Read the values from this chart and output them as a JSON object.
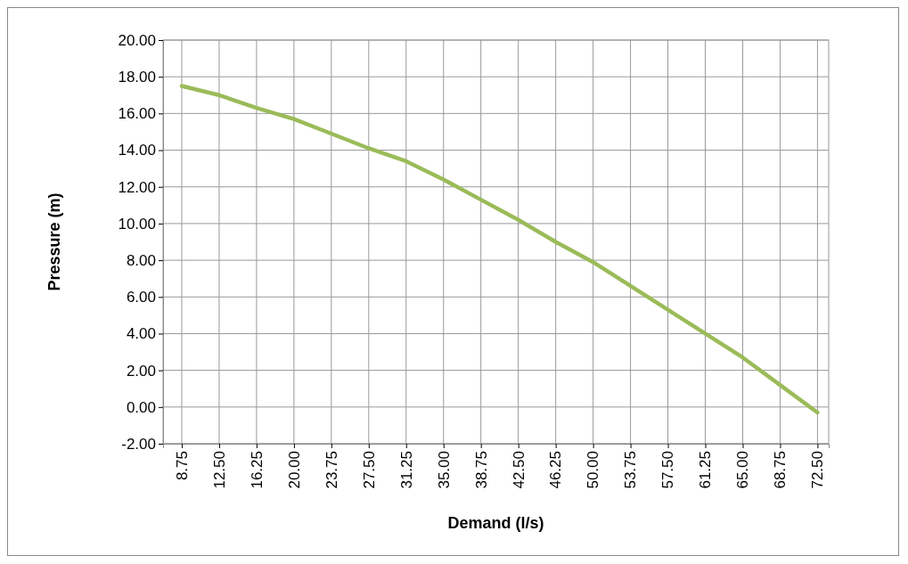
{
  "chart_data": {
    "type": "line",
    "xlabel": "Demand (l/s)",
    "ylabel": "Pressure (m)",
    "x": [
      8.75,
      12.5,
      16.25,
      20,
      23.75,
      27.5,
      31.25,
      35,
      38.75,
      42.5,
      46.25,
      50,
      53.75,
      57.5,
      61.25,
      65,
      68.75,
      72.5
    ],
    "series": [
      {
        "color": "#9bbb59",
        "values": [
          17.5,
          17.0,
          16.3,
          15.7,
          14.9,
          14.1,
          13.4,
          12.4,
          11.3,
          10.2,
          9.0,
          7.9,
          6.6,
          5.3,
          4.0,
          2.7,
          1.2,
          -0.3
        ]
      }
    ],
    "xlim": [
      6.875,
      73.625
    ],
    "xticks": [
      {
        "value": 8.75,
        "label": "8.75"
      },
      {
        "value": 12.5,
        "label": "12.50"
      },
      {
        "value": 16.25,
        "label": "16.25"
      },
      {
        "value": 20,
        "label": "20.00"
      },
      {
        "value": 23.75,
        "label": "23.75"
      },
      {
        "value": 27.5,
        "label": "27.50"
      },
      {
        "value": 31.25,
        "label": "31.25"
      },
      {
        "value": 35,
        "label": "35.00"
      },
      {
        "value": 38.75,
        "label": "38.75"
      },
      {
        "value": 42.5,
        "label": "42.50"
      },
      {
        "value": 46.25,
        "label": "46.25"
      },
      {
        "value": 50,
        "label": "50.00"
      },
      {
        "value": 53.75,
        "label": "53.75"
      },
      {
        "value": 57.5,
        "label": "57.50"
      },
      {
        "value": 61.25,
        "label": "61.25"
      },
      {
        "value": 65,
        "label": "65.00"
      },
      {
        "value": 68.75,
        "label": "68.75"
      },
      {
        "value": 72.5,
        "label": "72.50"
      }
    ],
    "ylim": [
      -2,
      20
    ],
    "yticks": [
      {
        "value": -2,
        "label": "-2.00"
      },
      {
        "value": 0,
        "label": "0.00"
      },
      {
        "value": 2,
        "label": "2.00"
      },
      {
        "value": 4,
        "label": "4.00"
      },
      {
        "value": 6,
        "label": "6.00"
      },
      {
        "value": 8,
        "label": "8.00"
      },
      {
        "value": 10,
        "label": "10.00"
      },
      {
        "value": 12,
        "label": "12.00"
      },
      {
        "value": 14,
        "label": "14.00"
      },
      {
        "value": 16,
        "label": "16.00"
      },
      {
        "value": 18,
        "label": "18.00"
      },
      {
        "value": 20,
        "label": "20.00"
      }
    ],
    "grid": true,
    "marker": "none",
    "line_style": "solid"
  }
}
